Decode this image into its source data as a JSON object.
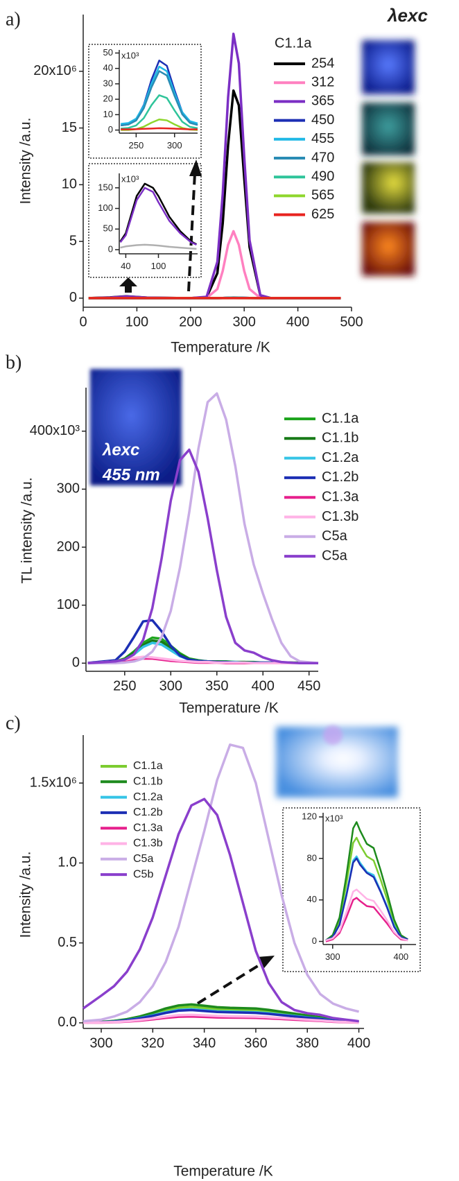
{
  "chart_data": [
    {
      "type": "line",
      "panel_label": "a)",
      "excitation_label": "λexc",
      "legend_title": "C1.1a",
      "x_label": "Temperature /K",
      "y_label": "Intensity /a.u.",
      "x": [
        10,
        50,
        80,
        120,
        200,
        230,
        250,
        260,
        270,
        280,
        290,
        300,
        310,
        330,
        350,
        400,
        480
      ],
      "xlim": [
        0,
        500
      ],
      "xticks": [
        0,
        100,
        200,
        300,
        400,
        500
      ],
      "ylim": [
        -0.8,
        25
      ],
      "yticks": [
        0,
        5,
        10,
        15,
        {
          "value": 20,
          "label": "20x10⁶"
        }
      ],
      "series": [
        {
          "name": "254",
          "color": "#000000",
          "values": [
            0,
            0.06,
            0.16,
            0.04,
            0,
            0.08,
            2.2,
            6.6,
            13.5,
            18.3,
            17.0,
            10.6,
            4.5,
            0.24,
            0,
            0,
            0
          ]
        },
        {
          "name": "312",
          "color": "#ff80c0",
          "values": [
            0,
            0.005,
            0.01,
            0.005,
            0,
            0.02,
            0.8,
            2.4,
            4.7,
            5.9,
            4.7,
            2.4,
            0.8,
            0.02,
            0,
            0,
            0
          ]
        },
        {
          "name": "365",
          "color": "#7b2fc4",
          "values": [
            0,
            0.05,
            0.15,
            0.04,
            0,
            0.12,
            3.2,
            9.2,
            17.7,
            23.3,
            20.7,
            12.5,
            5.1,
            0.26,
            0,
            0,
            0
          ]
        },
        {
          "name": "450",
          "color": "#1c2fb4",
          "values": [
            0,
            0,
            0,
            0,
            0,
            0,
            0.004,
            0.014,
            0.032,
            0.045,
            0.041,
            0.024,
            0.009,
            0,
            0,
            0,
            0
          ]
        },
        {
          "name": "455",
          "color": "#1fb8e6",
          "values": [
            0,
            0,
            0,
            0,
            0,
            0,
            0.004,
            0.013,
            0.029,
            0.041,
            0.038,
            0.022,
            0.008,
            0,
            0,
            0,
            0
          ]
        },
        {
          "name": "470",
          "color": "#2a8cb4",
          "values": [
            0,
            0,
            0,
            0,
            0,
            0,
            0.004,
            0.012,
            0.027,
            0.038,
            0.035,
            0.021,
            0.008,
            0,
            0,
            0,
            0
          ]
        },
        {
          "name": "490",
          "color": "#2fc49a",
          "values": [
            0,
            0,
            0,
            0,
            0,
            0,
            0.002,
            0.007,
            0.016,
            0.023,
            0.021,
            0.012,
            0.005,
            0,
            0,
            0,
            0
          ]
        },
        {
          "name": "565",
          "color": "#8ed62c",
          "values": [
            0,
            0,
            0,
            0,
            0,
            0,
            0.001,
            0.002,
            0.005,
            0.007,
            0.006,
            0.004,
            0.001,
            0,
            0,
            0,
            0
          ]
        },
        {
          "name": "625",
          "color": "#e8231f",
          "values": [
            0,
            0,
            0,
            0,
            0,
            0,
            0,
            0,
            0.001,
            0.001,
            0.001,
            0.001,
            0,
            0,
            0,
            0,
            0
          ]
        }
      ]
    },
    {
      "type": "line",
      "y_unit_label": "x10³",
      "x": [
        230,
        240,
        250,
        260,
        270,
        280,
        290,
        300,
        310,
        320,
        330
      ],
      "xlim": [
        228,
        330
      ],
      "xticks": [
        250,
        300
      ],
      "ylim": [
        -2,
        52
      ],
      "yticks": [
        0,
        10,
        20,
        30,
        40,
        50
      ],
      "series": [
        {
          "color": "#1c2fb4",
          "values": [
            3,
            3.7,
            6.9,
            16.3,
            32.7,
            45.1,
            41.7,
            25.8,
            11.6,
            5.1,
            3.3
          ]
        },
        {
          "color": "#1fb8e6",
          "values": [
            4,
            4.6,
            7.4,
            15.8,
            30.2,
            41.2,
            38.2,
            24.1,
            11.6,
            5.8,
            4.3
          ]
        },
        {
          "color": "#2a8cb4",
          "values": [
            3,
            3.6,
            6.2,
            14.2,
            27.8,
            38.3,
            35.4,
            22.1,
            10.2,
            4.7,
            3.3
          ]
        },
        {
          "color": "#2fc49a",
          "values": [
            1,
            1.4,
            3,
            7.8,
            16.2,
            22.6,
            20.8,
            12.7,
            5.4,
            2.1,
            1.2
          ]
        },
        {
          "color": "#8ed62c",
          "values": [
            0,
            0.1,
            0.6,
            2.2,
            4.8,
            6.9,
            6.3,
            3.7,
            1.4,
            0.3,
            0
          ]
        },
        {
          "color": "#e8231f",
          "values": [
            0.5,
            0.5,
            0.6,
            0.8,
            1,
            1.2,
            1.1,
            0.9,
            0.7,
            0.5,
            0.5
          ]
        }
      ]
    },
    {
      "type": "line",
      "y_unit_label": "x10³",
      "x": [
        30,
        40,
        60,
        75,
        90,
        100,
        120,
        140,
        160,
        170
      ],
      "xlim": [
        28,
        172
      ],
      "xticks": [
        40,
        100
      ],
      "ylim": [
        -10,
        185
      ],
      "yticks": [
        0,
        50,
        100,
        150
      ],
      "series": [
        {
          "color": "#b0b0b0",
          "values": [
            5,
            8,
            11,
            12,
            11,
            10,
            7,
            5,
            3,
            2
          ]
        },
        {
          "color": "#000000",
          "values": [
            20,
            40,
            130,
            160,
            150,
            130,
            80,
            45,
            20,
            13
          ]
        },
        {
          "color": "#7b2fc4",
          "values": [
            18,
            35,
            120,
            150,
            140,
            115,
            70,
            40,
            18,
            12
          ]
        }
      ]
    },
    {
      "type": "line",
      "panel_label": "b)",
      "photo_text": [
        "λexc",
        "455 nm"
      ],
      "x_label": "Temperature /K",
      "y_label": "TL intensity /a.u.",
      "x": [
        210,
        240,
        250,
        260,
        270,
        280,
        290,
        300,
        310,
        320,
        330,
        340,
        350,
        360,
        370,
        380,
        390,
        400,
        410,
        420,
        430,
        440,
        460
      ],
      "xlim": [
        208,
        460
      ],
      "xticks": [
        250,
        300,
        350,
        400,
        450
      ],
      "ylim": [
        -14,
        475
      ],
      "yticks": [
        0,
        100,
        200,
        300,
        {
          "value": 400,
          "label": "400x10³"
        }
      ],
      "series": [
        {
          "name": "C1.1a",
          "color": "#1fa51f",
          "values": [
            0,
            3,
            8,
            20,
            35,
            44,
            42,
            30,
            17,
            8,
            5,
            3,
            3,
            3,
            2,
            2,
            2,
            1,
            1,
            1,
            1,
            1,
            0
          ]
        },
        {
          "name": "C1.1b",
          "color": "#177a17",
          "values": [
            0,
            2,
            7,
            18,
            31,
            39,
            37,
            27,
            15,
            7,
            4,
            3,
            3,
            2,
            2,
            2,
            1,
            1,
            1,
            1,
            1,
            0,
            0
          ]
        },
        {
          "name": "C1.2a",
          "color": "#35c4e6",
          "values": [
            0,
            2,
            6,
            15,
            28,
            35,
            32,
            22,
            12,
            6,
            4,
            3,
            2,
            2,
            2,
            1,
            1,
            1,
            1,
            0,
            0,
            0,
            0
          ]
        },
        {
          "name": "C1.2b",
          "color": "#1c2fb4",
          "values": [
            0.5,
            5,
            20,
            45,
            72,
            74,
            55,
            30,
            13,
            6,
            4,
            3,
            2,
            2,
            1,
            1,
            1,
            1,
            1,
            0,
            0,
            0,
            0
          ]
        },
        {
          "name": "C1.3a",
          "color": "#e6208c",
          "values": [
            0,
            2,
            4,
            7,
            8,
            8,
            6,
            4,
            3,
            2,
            1,
            1,
            1,
            0,
            0,
            0,
            0,
            0,
            0,
            0,
            0,
            0,
            0
          ]
        },
        {
          "name": "C1.3b",
          "color": "#ffb3e6",
          "values": [
            0,
            3,
            6,
            9,
            11,
            10,
            8,
            6,
            4,
            3,
            2,
            2,
            1,
            1,
            1,
            1,
            0,
            0,
            0,
            0,
            0,
            0,
            0
          ]
        },
        {
          "name": "C5a",
          "color": "#c9ade6",
          "values": [
            0,
            0,
            1,
            3,
            8,
            20,
            45,
            90,
            165,
            260,
            370,
            450,
            465,
            420,
            340,
            240,
            170,
            120,
            75,
            35,
            12,
            3,
            0
          ]
        },
        {
          "name": "C5a",
          "color": "#8a3fcc",
          "values": [
            0,
            3,
            6,
            15,
            40,
            95,
            180,
            280,
            350,
            368,
            330,
            250,
            160,
            80,
            35,
            22,
            18,
            10,
            5,
            2,
            1,
            0,
            0
          ]
        }
      ]
    },
    {
      "type": "line",
      "panel_label": "c)",
      "x_label": "Temperature /K",
      "y_label": "Intensity /a.u.",
      "x": [
        293,
        300,
        305,
        310,
        315,
        320,
        325,
        330,
        335,
        340,
        345,
        350,
        355,
        360,
        365,
        370,
        375,
        380,
        385,
        390,
        395,
        400
      ],
      "xlim": [
        293,
        402
      ],
      "xticks": [
        300,
        320,
        340,
        360,
        380,
        400
      ],
      "ylim": [
        -0.035,
        1.8
      ],
      "yticks": [
        {
          "value": 0,
          "label": "0.0"
        },
        0.5,
        {
          "value": 1,
          "label": "1.0"
        },
        {
          "value": 1.5,
          "label": "1.5x10⁶"
        }
      ],
      "series": [
        {
          "name": "C1.1a",
          "color": "#7ccc30",
          "values": [
            0.002,
            0.005,
            0.01,
            0.02,
            0.035,
            0.055,
            0.078,
            0.095,
            0.1,
            0.093,
            0.085,
            0.082,
            0.08,
            0.078,
            0.07,
            0.06,
            0.05,
            0.04,
            0.03,
            0.018,
            0.01,
            0.005
          ]
        },
        {
          "name": "C1.1b",
          "color": "#1d8a1d",
          "values": [
            0.002,
            0.006,
            0.012,
            0.023,
            0.04,
            0.063,
            0.09,
            0.109,
            0.115,
            0.107,
            0.098,
            0.094,
            0.092,
            0.09,
            0.081,
            0.069,
            0.058,
            0.046,
            0.035,
            0.021,
            0.012,
            0.006
          ]
        },
        {
          "name": "C1.2a",
          "color": "#35c4e6",
          "values": [
            0.002,
            0.004,
            0.009,
            0.017,
            0.03,
            0.047,
            0.066,
            0.081,
            0.085,
            0.079,
            0.072,
            0.07,
            0.068,
            0.066,
            0.06,
            0.051,
            0.043,
            0.034,
            0.026,
            0.015,
            0.009,
            0.004
          ]
        },
        {
          "name": "C1.2b",
          "color": "#1c2fb4",
          "values": [
            0.002,
            0.004,
            0.008,
            0.016,
            0.028,
            0.044,
            0.062,
            0.076,
            0.08,
            0.074,
            0.068,
            0.066,
            0.064,
            0.062,
            0.056,
            0.048,
            0.04,
            0.032,
            0.024,
            0.014,
            0.008,
            0.004
          ]
        },
        {
          "name": "C1.3a",
          "color": "#e6208c",
          "values": [
            0.001,
            0.002,
            0.004,
            0.008,
            0.014,
            0.022,
            0.031,
            0.038,
            0.04,
            0.037,
            0.034,
            0.033,
            0.032,
            0.031,
            0.028,
            0.024,
            0.02,
            0.016,
            0.012,
            0.007,
            0.004,
            0.002
          ]
        },
        {
          "name": "C1.3b",
          "color": "#ffb3e6",
          "values": [
            0.001,
            0.003,
            0.005,
            0.01,
            0.018,
            0.028,
            0.039,
            0.048,
            0.05,
            0.047,
            0.043,
            0.041,
            0.04,
            0.039,
            0.035,
            0.03,
            0.025,
            0.02,
            0.015,
            0.009,
            0.005,
            0.003
          ]
        },
        {
          "name": "C5a",
          "color": "#c9ade6",
          "values": [
            0.01,
            0.02,
            0.04,
            0.07,
            0.13,
            0.23,
            0.38,
            0.6,
            0.9,
            1.2,
            1.52,
            1.74,
            1.72,
            1.5,
            1.15,
            0.8,
            0.5,
            0.3,
            0.18,
            0.12,
            0.09,
            0.07
          ]
        },
        {
          "name": "C5b",
          "color": "#8a3fcc",
          "values": [
            0.09,
            0.17,
            0.23,
            0.32,
            0.46,
            0.66,
            0.92,
            1.18,
            1.36,
            1.4,
            1.3,
            1.05,
            0.75,
            0.45,
            0.25,
            0.13,
            0.08,
            0.06,
            0.05,
            0.03,
            0.02,
            0.01
          ]
        }
      ]
    },
    {
      "type": "line",
      "y_unit_label": "x10³",
      "x": [
        290,
        300,
        310,
        320,
        330,
        335,
        340,
        350,
        360,
        370,
        380,
        390,
        400,
        410
      ],
      "xlim": [
        286,
        422
      ],
      "xticks": [
        300,
        400
      ],
      "ylim": [
        -3,
        124
      ],
      "yticks": [
        0,
        40,
        80,
        120
      ],
      "series": [
        {
          "color": "#7ccc30",
          "values": [
            1,
            5,
            20,
            55,
            95,
            100,
            93,
            82,
            78,
            60,
            40,
            18,
            5,
            2
          ]
        },
        {
          "color": "#1d8a1d",
          "values": [
            1,
            6,
            23,
            63,
            109,
            115,
            107,
            94,
            90,
            69,
            46,
            21,
            6,
            2
          ]
        },
        {
          "color": "#35c4e6",
          "values": [
            1,
            4,
            16,
            45,
            78,
            82,
            76,
            67,
            64,
            49,
            33,
            15,
            4,
            2
          ]
        },
        {
          "color": "#1c2fb4",
          "values": [
            1,
            4,
            16,
            44,
            76,
            80,
            74,
            66,
            62,
            48,
            32,
            14,
            4,
            2
          ]
        },
        {
          "color": "#e6208c",
          "values": [
            0,
            2,
            8,
            23,
            40,
            42,
            39,
            34,
            33,
            25,
            17,
            8,
            2,
            1
          ]
        },
        {
          "color": "#ffb3e6",
          "values": [
            1,
            3,
            10,
            28,
            48,
            50,
            47,
            41,
            39,
            30,
            20,
            9,
            3,
            1
          ]
        }
      ]
    }
  ]
}
